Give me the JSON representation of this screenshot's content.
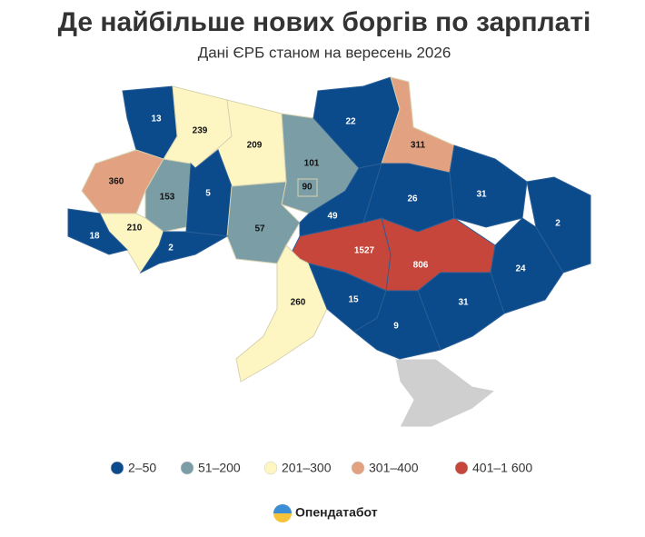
{
  "title": "Де найбільше нових боргів по зарплаті",
  "subtitle": "Дані ЄРБ станом на вересень 2026",
  "map": {
    "regions": [
      {
        "value": 13,
        "color": "#0b4a8b"
      },
      {
        "value": 239,
        "color": "#fdf6c3"
      },
      {
        "value": 209,
        "color": "#fdf6c3"
      },
      {
        "value": 101,
        "color": "#7b9ea6"
      },
      {
        "value": 22,
        "color": "#0b4a8b"
      },
      {
        "value": 311,
        "color": "#e2a282"
      },
      {
        "value": 360,
        "color": "#e2a282"
      },
      {
        "value": 153,
        "color": "#7b9ea6"
      },
      {
        "value": 5,
        "color": "#0b4a8b"
      },
      {
        "value": 57,
        "color": "#7b9ea6"
      },
      {
        "value": 90,
        "color": "#7b9ea6"
      },
      {
        "value": 210,
        "color": "#fdf6c3"
      },
      {
        "value": 18,
        "color": "#0b4a8b"
      },
      {
        "value": 2,
        "color": "#0b4a8b"
      },
      {
        "value": 49,
        "color": "#0b4a8b"
      },
      {
        "value": 26,
        "color": "#0b4a8b"
      },
      {
        "value": 31,
        "color": "#0b4a8b"
      },
      {
        "value": 2,
        "color": "#0b4a8b"
      },
      {
        "value": 24,
        "color": "#0b4a8b"
      },
      {
        "value": 1527,
        "color": "#c6463b"
      },
      {
        "value": 806,
        "color": "#c6463b"
      },
      {
        "value": 260,
        "color": "#fdf6c3"
      },
      {
        "value": 15,
        "color": "#0b4a8b"
      },
      {
        "value": 31,
        "color": "#0b4a8b"
      },
      {
        "value": 9,
        "color": "#0b4a8b"
      }
    ]
  },
  "legend": [
    {
      "label": "2–50",
      "color": "#0b4a8b"
    },
    {
      "label": "51–200",
      "color": "#7b9ea6"
    },
    {
      "label": "201–300",
      "color": "#fdf6c3"
    },
    {
      "label": "301–400",
      "color": "#e2a282"
    },
    {
      "label": "401–1 600",
      "color": "#c6463b"
    }
  ],
  "brand": "Опендатабот"
}
